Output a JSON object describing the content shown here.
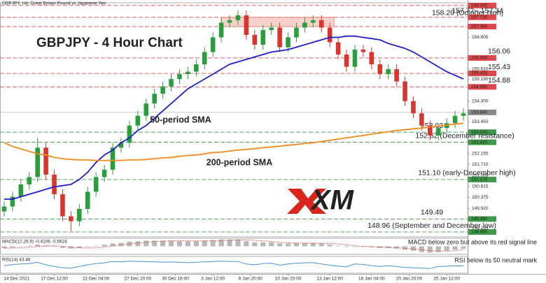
{
  "chart_data": [
    {
      "type": "candlestick",
      "header": "GBPJPY, H4:  Great Britain Pound vs Japanese Yen",
      "title": "GBPJPY - 4 Hour Chart",
      "logo": "XM",
      "up_color": "#2a9d3c",
      "down_color": "#d8352f",
      "xlim": [
        -0.5,
        55.5
      ],
      "xticks": [
        {
          "value": 1.5,
          "label": "14 Dec 2021"
        },
        {
          "value": 6,
          "label": "17 Dec 12:00"
        },
        {
          "value": 11,
          "label": "22 Dec 04:00"
        },
        {
          "value": 16,
          "label": "27 Dec 20:00"
        },
        {
          "value": 20.5,
          "label": "30 Dec 16:00"
        },
        {
          "value": 25,
          "label": "3 Jan 12:00"
        },
        {
          "value": 29.5,
          "label": "6 Jan 20:00"
        },
        {
          "value": 34,
          "label": "10 Jan 20:00"
        },
        {
          "value": 39,
          "label": "13 Jan 12:00"
        },
        {
          "value": 44,
          "label": "18 Jan 04:00"
        },
        {
          "value": 48.5,
          "label": "20 Jan 20:00"
        },
        {
          "value": 53,
          "label": "25 Jan 12:00"
        }
      ],
      "ylim": [
        148.76,
        158.31
      ],
      "yticks": [
        {
          "value": 156.905,
          "label": "156.905"
        },
        {
          "value": 155.61,
          "label": "155.610"
        },
        {
          "value": 155.19,
          "label": "155.190"
        },
        {
          "value": 154.3,
          "label": "154.300"
        },
        {
          "value": 153.45,
          "label": "153.450"
        },
        {
          "value": 152.155,
          "label": "152.155"
        },
        {
          "value": 151.71,
          "label": "151.710"
        },
        {
          "value": 151.265,
          "label": "151.265"
        },
        {
          "value": 150.815,
          "label": "150.815"
        },
        {
          "value": 150.375,
          "label": "150.375"
        },
        {
          "value": 149.92,
          "label": "149.920"
        },
        {
          "value": 149.125,
          "label": "149.125"
        }
      ],
      "open": [
        149.8,
        150.0,
        150.4,
        150.9,
        151.2,
        152.4,
        151.3,
        150.5,
        149.6,
        149.4,
        149.9,
        150.6,
        151.2,
        151.5,
        152.4,
        152.6,
        153.3,
        153.7,
        154.2,
        154.6,
        154.9,
        155.2,
        155.4,
        155.5,
        155.8,
        156.3,
        156.9,
        157.5,
        157.6,
        157.8,
        157.0,
        156.6,
        157.2,
        157.3,
        156.5,
        156.9,
        157.3,
        157.5,
        157.6,
        157.3,
        156.7,
        156.2,
        155.7,
        156.4,
        156.3,
        155.8,
        155.4,
        155.6,
        155.1,
        154.3,
        153.8,
        153.3,
        152.9,
        153.2,
        153.4,
        153.7
      ],
      "high": [
        150.2,
        150.6,
        151.1,
        151.4,
        152.8,
        152.6,
        151.5,
        150.7,
        149.8,
        150.1,
        150.8,
        151.4,
        151.7,
        152.6,
        152.8,
        153.5,
        153.9,
        154.4,
        154.8,
        155.1,
        155.4,
        155.6,
        155.7,
        156.0,
        156.5,
        157.1,
        157.7,
        157.8,
        158.0,
        158.0,
        157.2,
        157.4,
        157.5,
        157.5,
        157.1,
        157.5,
        157.7,
        157.8,
        157.8,
        157.5,
        156.9,
        156.4,
        156.6,
        156.6,
        156.5,
        156.0,
        155.8,
        155.8,
        155.3,
        154.5,
        154.0,
        153.5,
        153.4,
        153.6,
        153.9,
        154.0
      ],
      "low": [
        149.6,
        149.8,
        150.2,
        150.7,
        151.0,
        151.1,
        150.3,
        149.4,
        149.0,
        149.2,
        149.7,
        150.4,
        151.0,
        151.3,
        152.2,
        152.4,
        153.1,
        153.5,
        154.0,
        154.4,
        154.7,
        155.0,
        155.2,
        155.3,
        155.6,
        156.1,
        156.7,
        157.3,
        157.4,
        156.8,
        156.4,
        156.4,
        157.0,
        156.3,
        156.3,
        156.7,
        157.1,
        157.3,
        157.1,
        156.5,
        156.0,
        155.5,
        155.5,
        156.1,
        155.6,
        155.2,
        155.2,
        154.9,
        154.1,
        153.6,
        153.1,
        152.7,
        152.7,
        153.0,
        153.2,
        153.5
      ],
      "close": [
        150.0,
        150.4,
        150.9,
        151.2,
        152.4,
        151.3,
        150.5,
        149.6,
        149.4,
        149.9,
        150.6,
        151.2,
        151.5,
        152.4,
        152.6,
        153.3,
        153.7,
        154.2,
        154.6,
        154.9,
        155.2,
        155.4,
        155.5,
        155.8,
        156.3,
        156.9,
        157.5,
        157.6,
        157.8,
        157.0,
        156.6,
        157.2,
        157.3,
        156.5,
        156.9,
        157.3,
        157.5,
        157.6,
        157.3,
        156.7,
        156.2,
        155.7,
        156.4,
        156.3,
        155.8,
        155.4,
        155.6,
        155.1,
        154.3,
        153.8,
        153.3,
        152.9,
        153.2,
        153.4,
        153.7,
        153.8
      ],
      "series": [
        {
          "name": "50-period SMA",
          "color": "#1f1fc8",
          "values": [
            150.3,
            150.3,
            150.4,
            150.5,
            150.6,
            150.7,
            150.8,
            150.85,
            150.9,
            151.1,
            151.4,
            151.8,
            152.1,
            152.3,
            152.6,
            152.8,
            153.1,
            153.3,
            153.6,
            153.9,
            154.2,
            154.5,
            154.8,
            155.0,
            155.2,
            155.4,
            155.6,
            155.8,
            155.9,
            156.0,
            156.1,
            156.2,
            156.3,
            156.35,
            156.4,
            156.5,
            156.6,
            156.7,
            156.8,
            156.9,
            156.9,
            156.95,
            156.95,
            156.9,
            156.85,
            156.8,
            156.65,
            156.55,
            156.45,
            156.3,
            156.1,
            155.9,
            155.7,
            155.5,
            155.35,
            155.2
          ]
        },
        {
          "name": "200-period SMA",
          "color": "#f28c1e",
          "values": [
            152.6,
            152.45,
            152.35,
            152.25,
            152.15,
            152.1,
            152.0,
            151.95,
            151.92,
            151.9,
            151.9,
            151.88,
            151.88,
            151.88,
            151.88,
            151.9,
            151.9,
            151.92,
            151.95,
            151.98,
            152.0,
            152.05,
            152.08,
            152.1,
            152.15,
            152.2,
            152.22,
            152.26,
            152.3,
            152.33,
            152.36,
            152.4,
            152.43,
            152.46,
            152.5,
            152.53,
            152.57,
            152.6,
            152.65,
            152.7,
            152.75,
            152.8,
            152.85,
            152.9,
            152.95,
            153.0,
            153.05,
            153.1,
            153.13,
            153.17,
            153.2,
            153.25,
            153.28,
            153.32,
            153.36,
            153.4
          ]
        }
      ],
      "zone": {
        "x": [
          26,
          39.5
        ],
        "y": [
          157.34,
          157.72
        ],
        "color": "#f4c2b8"
      },
      "last_price": {
        "value": 153.84,
        "label": "153.840"
      },
      "levels": [
        {
          "value": 158.2,
          "axis_label": "158.200",
          "label": "158.20 (October high)",
          "color": "#e0474c"
        },
        {
          "value": 157.72,
          "axis_label": "157.720",
          "label": "157.72 - 157.34",
          "color": "#e0474c"
        },
        {
          "value": 157.34,
          "axis_label": "157.340",
          "color": "#e0474c"
        },
        {
          "value": 156.06,
          "axis_label": "156.060",
          "label": "156.06",
          "color": "#e0474c"
        },
        {
          "value": 155.43,
          "axis_label": "155.430",
          "label": "155.43",
          "color": "#e0474c"
        },
        {
          "value": 154.88,
          "axis_label": "154.880",
          "label": "154.88",
          "color": "#e0474c"
        },
        {
          "value": 153.03,
          "axis_label": "153.030",
          "label": "153.03",
          "color": "#3f9a49"
        },
        {
          "value": 152.62,
          "axis_label": "152.620",
          "label": "152.62 (December resistance)",
          "color": "#3f9a49"
        },
        {
          "value": 151.1,
          "axis_label": "151.100",
          "label": "151.10 (early-December high)",
          "color": "#3f9a49"
        },
        {
          "value": 149.49,
          "axis_label": "149.490",
          "label": "149.49",
          "color": "#3f9a49"
        },
        {
          "value": 148.96,
          "axis_label": "148.960",
          "label": "148.96 (September and December low)",
          "color": "#3f9a49"
        }
      ]
    },
    {
      "type": "macd",
      "title": "MACD(12,26,9) -0.4106 -0.5624",
      "annotation": "MACD below zero but above its red signal line",
      "ylim": [
        -1.4,
        1.4
      ],
      "series": [
        {
          "color": "#b8b8b8",
          "values": [
            -0.3,
            -0.2,
            0.0,
            0.1,
            0.3,
            0.2,
            -0.1,
            -0.3,
            -0.4,
            -0.3,
            -0.1,
            0.1,
            0.3,
            0.5,
            0.6,
            0.8,
            0.9,
            1.0,
            1.0,
            1.0,
            1.0,
            0.9,
            0.9,
            0.9,
            1.0,
            1.1,
            1.2,
            1.2,
            1.2,
            0.9,
            0.7,
            0.7,
            0.7,
            0.5,
            0.5,
            0.6,
            0.6,
            0.6,
            0.5,
            0.3,
            0.1,
            -0.1,
            -0.1,
            -0.1,
            -0.2,
            -0.3,
            -0.3,
            -0.4,
            -0.6,
            -0.8,
            -1.0,
            -1.1,
            -1.0,
            -0.8,
            -0.6,
            -0.41
          ]
        },
        {
          "color": "#e0474c",
          "values": [
            -0.3,
            -0.3,
            -0.25,
            -0.15,
            -0.05,
            0.05,
            0.1,
            0.0,
            -0.15,
            -0.25,
            -0.3,
            -0.25,
            -0.1,
            0.05,
            0.25,
            0.4,
            0.55,
            0.7,
            0.8,
            0.9,
            0.95,
            1.0,
            0.95,
            0.95,
            0.95,
            0.95,
            1.0,
            1.05,
            1.1,
            1.1,
            1.05,
            0.95,
            0.85,
            0.7,
            0.6,
            0.55,
            0.55,
            0.55,
            0.55,
            0.5,
            0.4,
            0.25,
            0.1,
            0.0,
            -0.05,
            -0.1,
            -0.2,
            -0.25,
            -0.35,
            -0.45,
            -0.6,
            -0.75,
            -0.85,
            -0.9,
            -0.75,
            -0.56
          ]
        }
      ]
    },
    {
      "type": "line",
      "title": "RSI(14) 43.46",
      "annotation": "RSI below its 50 neutral mark",
      "ylim": [
        0,
        100
      ],
      "color": "#4a8fd8",
      "values": [
        45,
        52,
        55,
        58,
        65,
        50,
        40,
        32,
        30,
        40,
        50,
        58,
        62,
        70,
        68,
        72,
        70,
        70,
        68,
        66,
        67,
        65,
        63,
        66,
        68,
        70,
        72,
        70,
        70,
        55,
        50,
        58,
        60,
        48,
        55,
        60,
        62,
        63,
        55,
        48,
        42,
        38,
        55,
        52,
        45,
        40,
        45,
        40,
        35,
        32,
        30,
        28,
        40,
        42,
        44,
        43.46
      ]
    }
  ]
}
